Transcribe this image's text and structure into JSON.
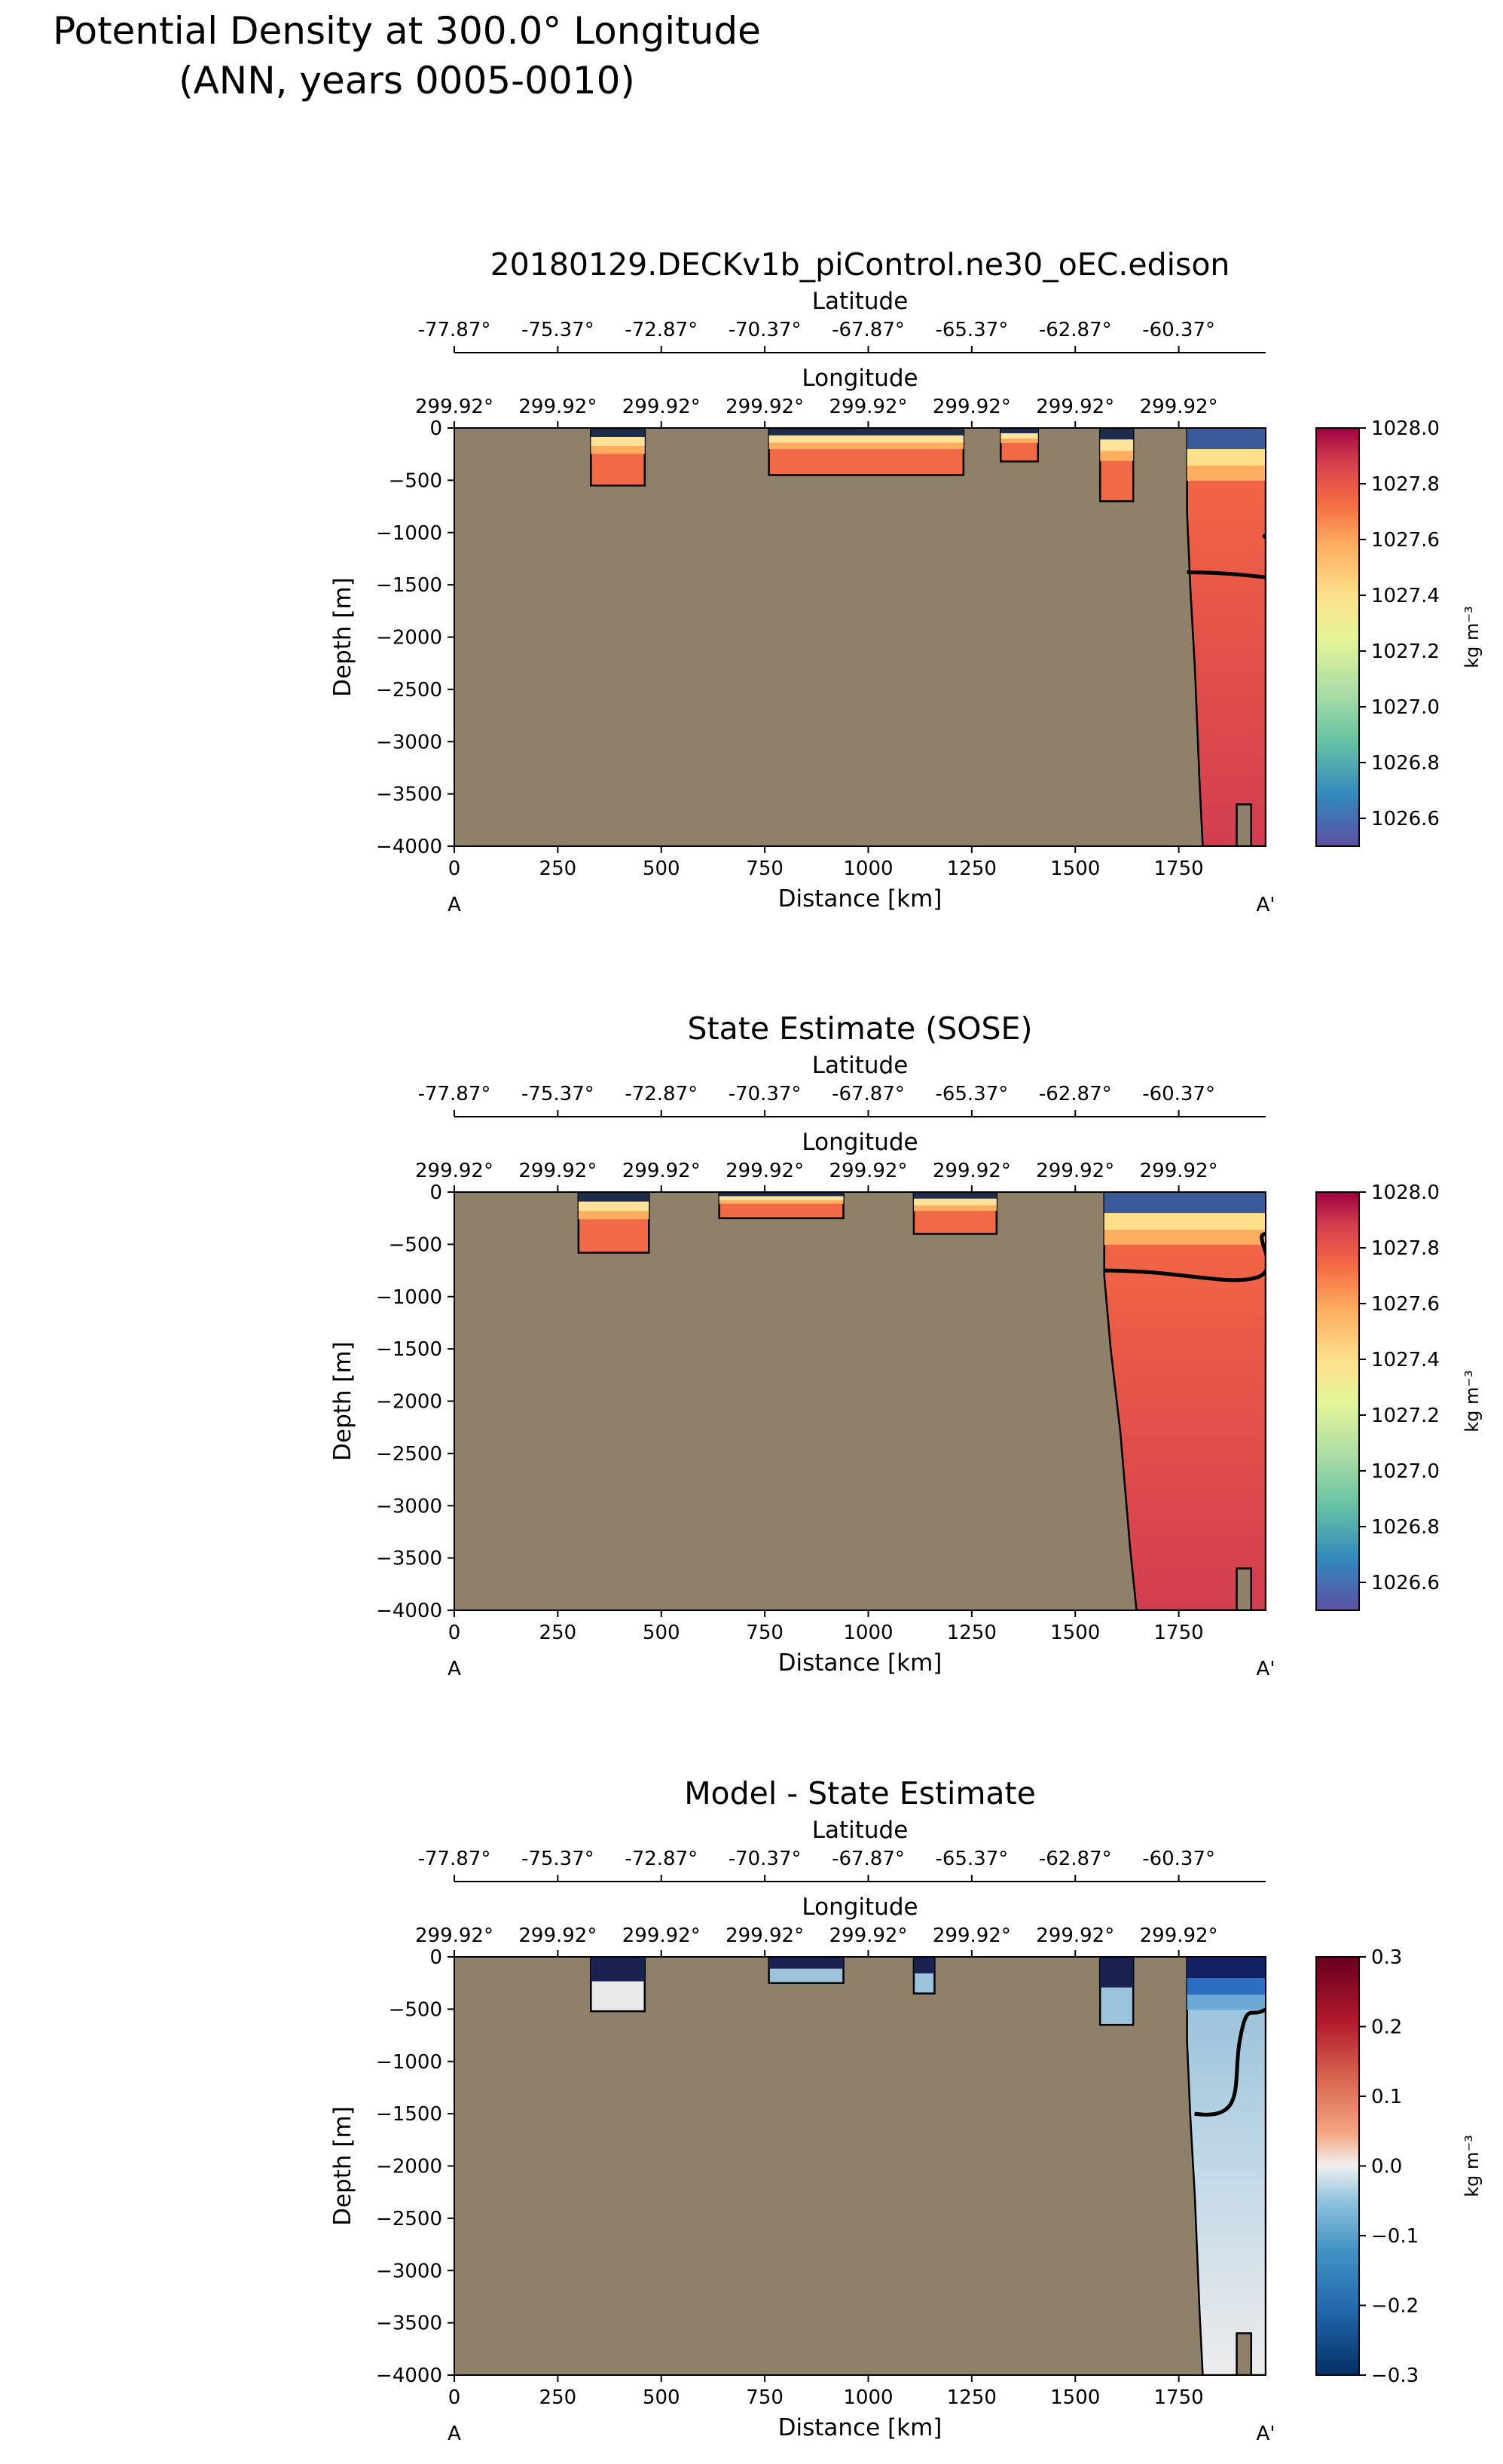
{
  "figure": {
    "title_line1": "Potential Density at 300.0° Longitude",
    "title_line2": "(ANN, years 0005-0010)"
  },
  "shared": {
    "xlabel": "Distance [km]",
    "ylabel": "Depth [m]",
    "x_ticks": [
      0,
      250,
      500,
      750,
      1000,
      1250,
      1500,
      1750
    ],
    "xlim": [
      0,
      1960
    ],
    "y_ticks": [
      0,
      -500,
      -1000,
      -1500,
      -2000,
      -2500,
      -3000,
      -3500,
      -4000
    ],
    "ylim": [
      -4000,
      0
    ],
    "lat_axis_label": "Latitude",
    "lat_ticks": [
      "-77.87°",
      "-75.37°",
      "-72.87°",
      "-70.37°",
      "-67.87°",
      "-65.37°",
      "-62.87°",
      "-60.37°"
    ],
    "lon_axis_label": "Longitude",
    "lon_ticks": [
      "299.92°",
      "299.92°",
      "299.92°",
      "299.92°",
      "299.92°",
      "299.92°",
      "299.92°",
      "299.92°"
    ],
    "section_start": "A",
    "section_end": "A'",
    "land_color": "#8f806a"
  },
  "chart_data": [
    {
      "type": "heatmap",
      "title": "20180129.DECKv1b_piControl.ne30_oEC.edison",
      "xlabel": "Distance [km]",
      "ylabel": "Depth [m]",
      "colorbar": {
        "label": "kg m⁻³",
        "colormap": "Spectral_r",
        "range": [
          1026.5,
          1028.0
        ],
        "ticks": [
          "1028.0",
          "1027.8",
          "1027.6",
          "1027.4",
          "1027.2",
          "1027.0",
          "1026.8",
          "1026.6"
        ],
        "tick_values": [
          1028.0,
          1027.8,
          1027.6,
          1027.4,
          1027.2,
          1027.0,
          1026.8,
          1026.6
        ]
      },
      "water_regions_km_m": [
        {
          "x": [
            330,
            460
          ],
          "bottom": -550
        },
        {
          "x": [
            760,
            1230
          ],
          "bottom": -450
        },
        {
          "x": [
            1320,
            1410
          ],
          "bottom": -320
        },
        {
          "x": [
            1560,
            1640
          ],
          "bottom": -700
        },
        {
          "x": [
            1770,
            1960
          ],
          "bottom": -3950
        }
      ],
      "contour_1027_8_depth_m": -1380
    },
    {
      "type": "heatmap",
      "title": "State Estimate (SOSE)",
      "xlabel": "Distance [km]",
      "ylabel": "Depth [m]",
      "colorbar": {
        "label": "kg m⁻³",
        "colormap": "Spectral_r",
        "range": [
          1026.5,
          1028.0
        ],
        "ticks": [
          "1028.0",
          "1027.8",
          "1027.6",
          "1027.4",
          "1027.2",
          "1027.0",
          "1026.8",
          "1026.6"
        ],
        "tick_values": [
          1028.0,
          1027.8,
          1027.6,
          1027.4,
          1027.2,
          1027.0,
          1026.8,
          1026.6
        ]
      },
      "water_regions_km_m": [
        {
          "x": [
            300,
            470
          ],
          "bottom": -580
        },
        {
          "x": [
            640,
            940
          ],
          "bottom": -250
        },
        {
          "x": [
            1110,
            1310
          ],
          "bottom": -400
        },
        {
          "x": [
            1570,
            1960
          ],
          "bottom": -3980
        }
      ],
      "contour_1027_8_depth_m": -750
    },
    {
      "type": "heatmap",
      "title": "Model - State Estimate",
      "xlabel": "Distance [km]",
      "ylabel": "Depth [m]",
      "colorbar": {
        "label": "kg m⁻³",
        "colormap": "RdBu_r",
        "range": [
          -0.3,
          0.3
        ],
        "ticks": [
          "0.3",
          "0.2",
          "0.1",
          "0.0",
          "−0.1",
          "−0.2",
          "−0.3"
        ],
        "tick_values": [
          0.3,
          0.2,
          0.1,
          0.0,
          -0.1,
          -0.2,
          -0.3
        ]
      },
      "water_regions_km_m": [
        {
          "x": [
            330,
            460
          ],
          "bottom": -520
        },
        {
          "x": [
            760,
            940
          ],
          "bottom": -250
        },
        {
          "x": [
            1110,
            1160
          ],
          "bottom": -350
        },
        {
          "x": [
            1560,
            1640
          ],
          "bottom": -650
        },
        {
          "x": [
            1770,
            1960
          ],
          "bottom": -3950
        }
      ],
      "contour_zero_depth_m": -1500
    }
  ]
}
